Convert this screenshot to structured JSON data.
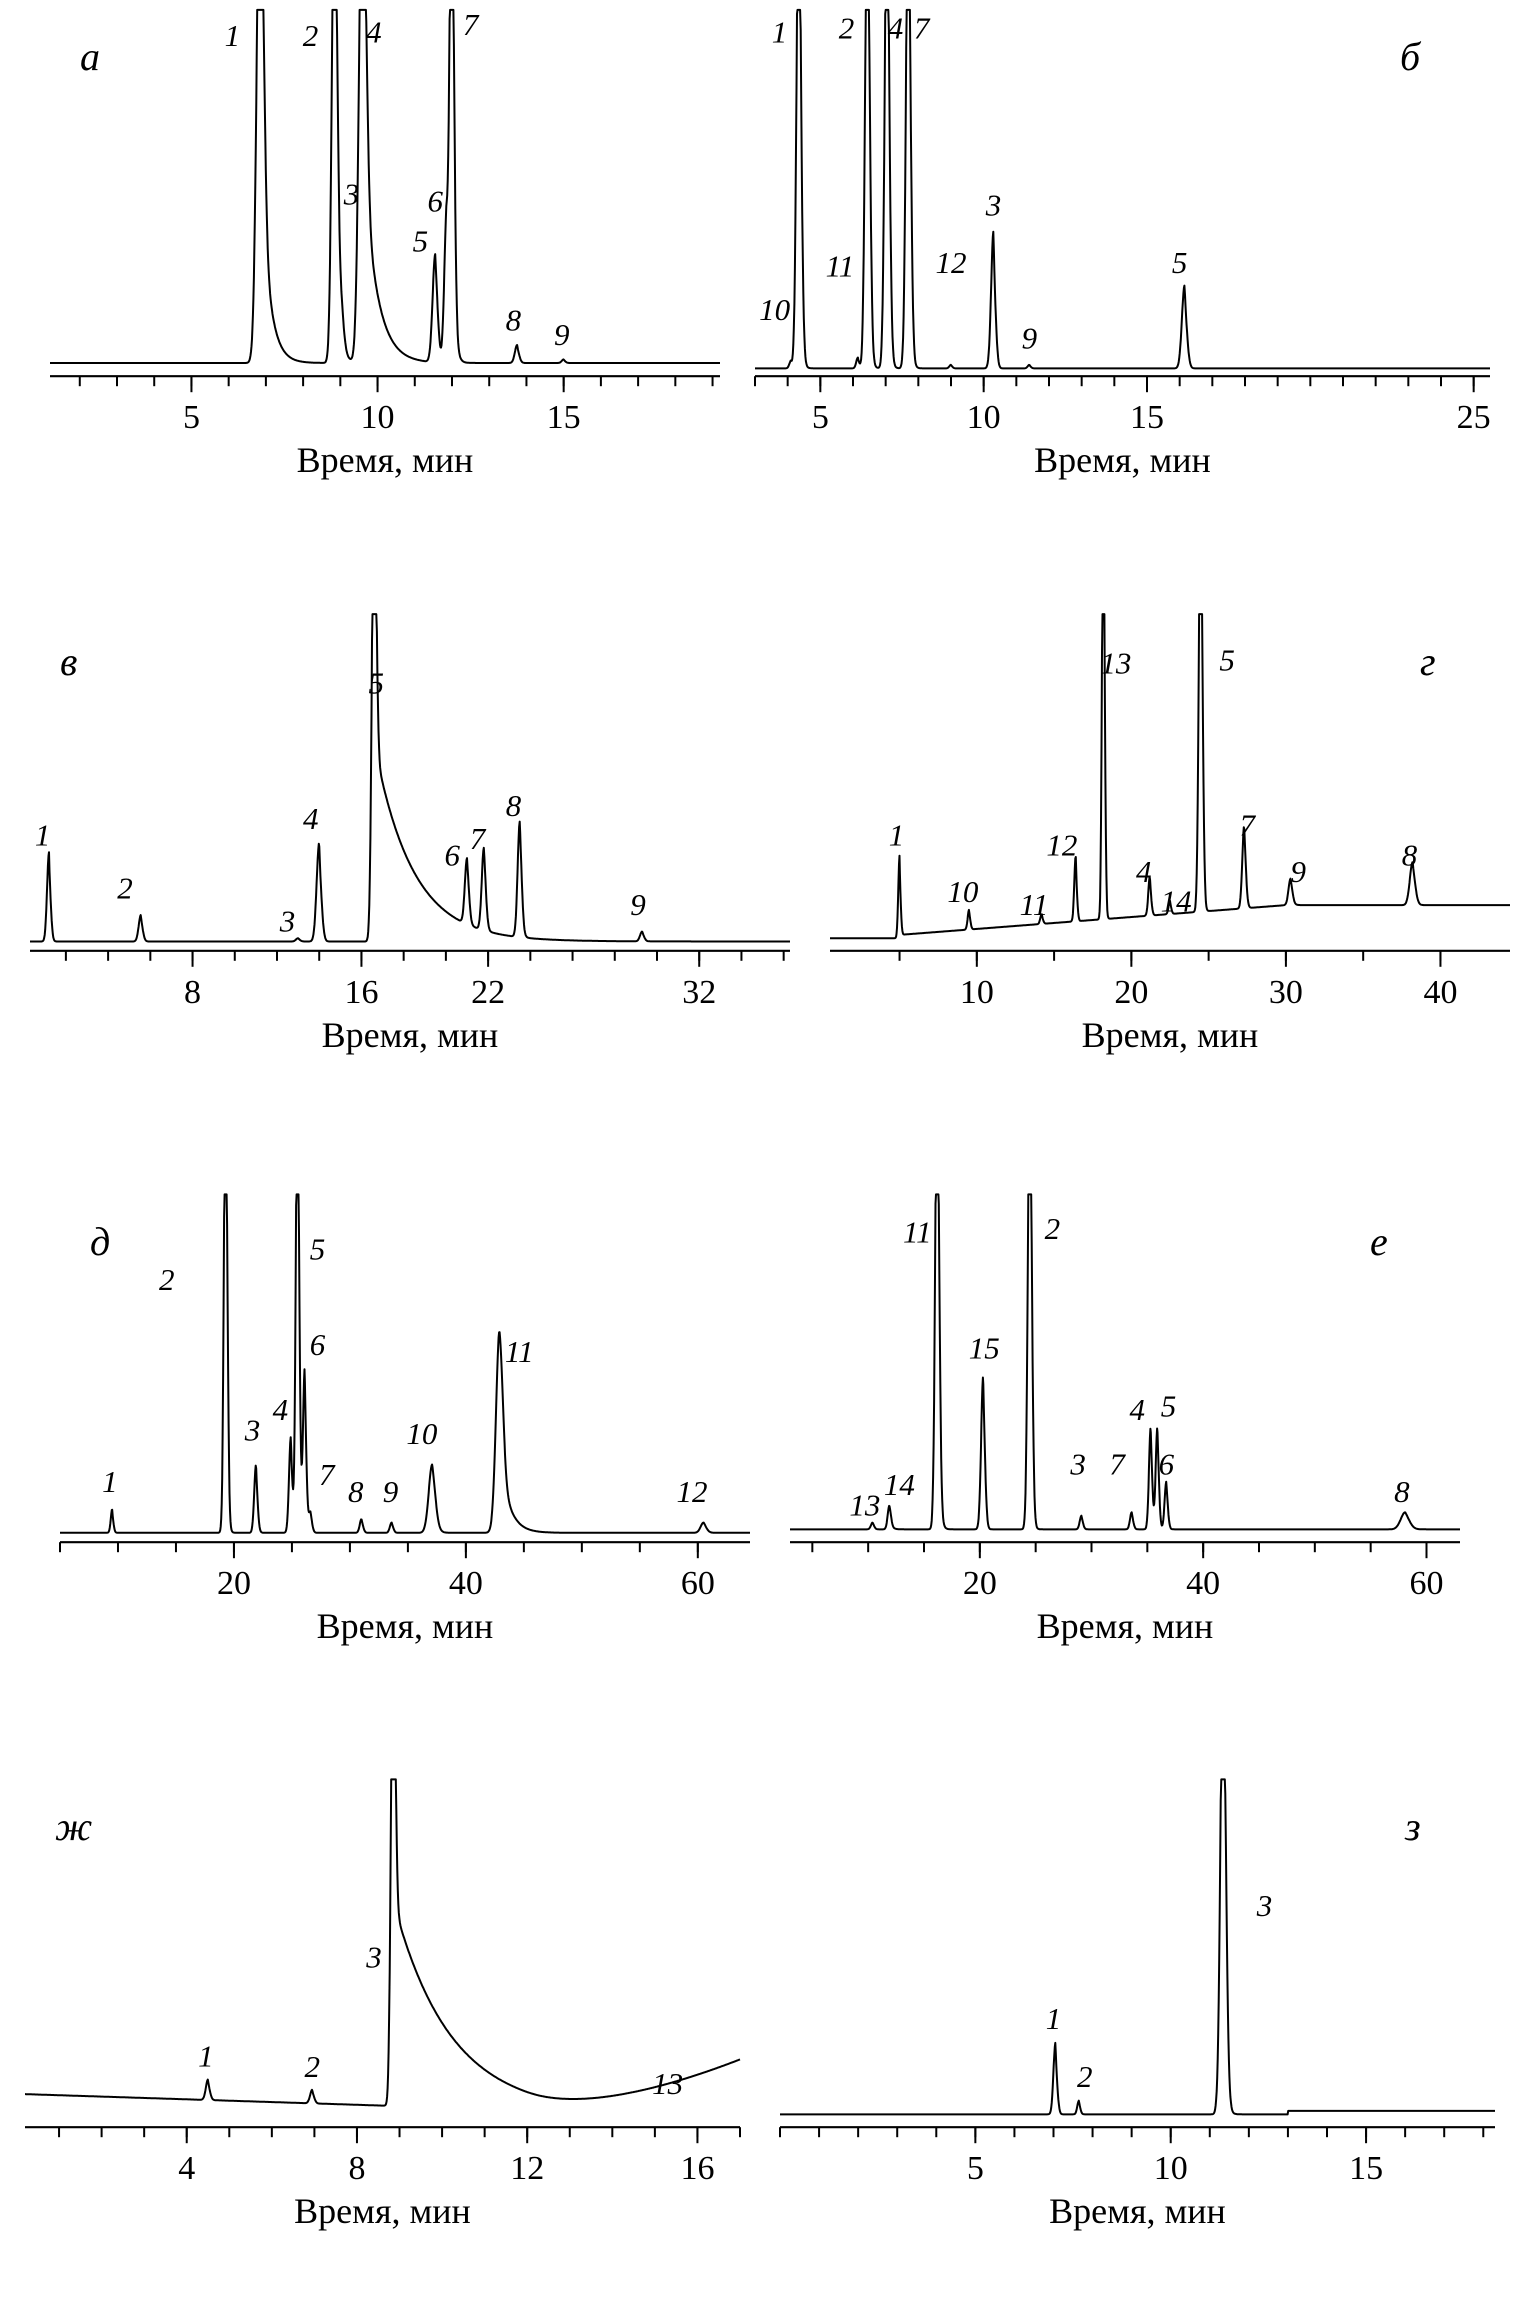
{
  "chart_data": [
    {
      "id": "a",
      "type": "line",
      "panel_label": "а",
      "xlabel": "Время, мин",
      "xticks": [
        5,
        10,
        15
      ],
      "xlim": [
        1.2,
        19.2
      ],
      "baseline": 0.02,
      "peaks": [
        {
          "label": "1",
          "x": 6.85,
          "height": 1.5,
          "width": 0.09,
          "tail": 0.22
        },
        {
          "label": "2",
          "x": 8.85,
          "height": 1.5,
          "width": 0.07,
          "tail": 0.1
        },
        {
          "label": "4",
          "x": 9.6,
          "height": 1.5,
          "width": 0.09,
          "tail": 0.35
        },
        {
          "label": "3",
          "x": 9.05,
          "height": 0.07,
          "width": 0.06,
          "tail": 0.05
        },
        {
          "label": "5",
          "x": 11.55,
          "height": 0.3,
          "width": 0.07,
          "tail": 0.05
        },
        {
          "label": "6",
          "x": 11.85,
          "height": 0.38,
          "width": 0.06,
          "tail": 0.05
        },
        {
          "label": "7",
          "x": 12.0,
          "height": 1.5,
          "width": 0.06,
          "tail": 0.06
        },
        {
          "label": "8",
          "x": 13.75,
          "height": 0.05,
          "width": 0.06,
          "tail": 0.03
        },
        {
          "label": "9",
          "x": 15.0,
          "height": 0.01,
          "width": 0.05,
          "tail": 0.02
        }
      ],
      "peak_labels": [
        {
          "text": "1",
          "x": 6.1,
          "y": 0.9
        },
        {
          "text": "2",
          "x": 8.2,
          "y": 0.9
        },
        {
          "text": "4",
          "x": 9.9,
          "y": 0.91
        },
        {
          "text": "7",
          "x": 12.5,
          "y": 0.93
        },
        {
          "text": "3",
          "x": 9.3,
          "y": 0.46
        },
        {
          "text": "6",
          "x": 11.55,
          "y": 0.44
        },
        {
          "text": "5",
          "x": 11.15,
          "y": 0.33
        },
        {
          "text": "8",
          "x": 13.65,
          "y": 0.11
        },
        {
          "text": "9",
          "x": 14.95,
          "y": 0.07
        }
      ]
    },
    {
      "id": "b",
      "type": "line",
      "panel_label": "б",
      "xlabel": "Время, мин",
      "xticks": [
        5,
        10,
        15,
        25
      ],
      "xlim": [
        3.0,
        25.5
      ],
      "baseline": 0.005,
      "peaks": [
        {
          "label": "1",
          "x": 4.35,
          "height": 1.5,
          "width": 0.07,
          "tail": 0.05
        },
        {
          "label": "10",
          "x": 4.1,
          "height": 0.02,
          "width": 0.05,
          "tail": 0.02
        },
        {
          "label": "11",
          "x": 6.15,
          "height": 0.03,
          "width": 0.05,
          "tail": 0.02
        },
        {
          "label": "2",
          "x": 6.45,
          "height": 1.5,
          "width": 0.07,
          "tail": 0.05
        },
        {
          "label": "4",
          "x": 7.05,
          "height": 1.5,
          "width": 0.07,
          "tail": 0.05
        },
        {
          "label": "7",
          "x": 7.7,
          "height": 1.5,
          "width": 0.07,
          "tail": 0.05
        },
        {
          "label": "12",
          "x": 9.0,
          "height": 0.01,
          "width": 0.05,
          "tail": 0.02
        },
        {
          "label": "3",
          "x": 10.3,
          "height": 0.38,
          "width": 0.07,
          "tail": 0.03
        },
        {
          "label": "9",
          "x": 11.4,
          "height": 0.01,
          "width": 0.05,
          "tail": 0.02
        },
        {
          "label": "5",
          "x": 16.15,
          "height": 0.23,
          "width": 0.08,
          "tail": 0.04
        }
      ],
      "peak_labels": [
        {
          "text": "1",
          "x": 3.75,
          "y": 0.91
        },
        {
          "text": "2",
          "x": 5.8,
          "y": 0.92
        },
        {
          "text": "4",
          "x": 7.3,
          "y": 0.92
        },
        {
          "text": "7",
          "x": 8.1,
          "y": 0.92
        },
        {
          "text": "б",
          "x": 23.0,
          "y": 0.87
        },
        {
          "text": "3",
          "x": 10.3,
          "y": 0.43
        },
        {
          "text": "5",
          "x": 16.0,
          "y": 0.27
        },
        {
          "text": "12",
          "x": 9.0,
          "y": 0.27
        },
        {
          "text": "11",
          "x": 5.6,
          "y": 0.26
        },
        {
          "text": "10",
          "x": 3.6,
          "y": 0.14
        },
        {
          "text": "9",
          "x": 11.4,
          "y": 0.06
        }
      ]
    },
    {
      "id": "c",
      "type": "line",
      "panel_label": "в",
      "xlabel": "Время, мин",
      "xticks": [
        8,
        16,
        22,
        32
      ],
      "xlim": [
        0.3,
        36.3
      ],
      "baseline": 0.01,
      "peaks": [
        {
          "label": "1",
          "x": 1.2,
          "height": 0.27,
          "width": 0.09,
          "tail": 0.04
        },
        {
          "label": "2",
          "x": 5.55,
          "height": 0.08,
          "width": 0.1,
          "tail": 0.05
        },
        {
          "label": "3",
          "x": 13.0,
          "height": 0.01,
          "width": 0.1,
          "tail": 0.05
        },
        {
          "label": "4",
          "x": 14.0,
          "height": 0.3,
          "width": 0.12,
          "tail": 0.05
        },
        {
          "label": "5",
          "x": 16.6,
          "height": 1.5,
          "width": 0.1,
          "tail": 1.8
        },
        {
          "label": "6",
          "x": 21.0,
          "height": 0.2,
          "width": 0.1,
          "tail": 0.08
        },
        {
          "label": "7",
          "x": 21.8,
          "height": 0.25,
          "width": 0.1,
          "tail": 0.08
        },
        {
          "label": "8",
          "x": 23.5,
          "height": 0.35,
          "width": 0.1,
          "tail": 0.08
        },
        {
          "label": "9",
          "x": 29.3,
          "height": 0.03,
          "width": 0.1,
          "tail": 0.05
        }
      ],
      "peak_labels": [
        {
          "text": "1",
          "x": 0.9,
          "y": 0.3
        },
        {
          "text": "2",
          "x": 4.8,
          "y": 0.14
        },
        {
          "text": "3",
          "x": 12.5,
          "y": 0.04
        },
        {
          "text": "4",
          "x": 13.6,
          "y": 0.35
        },
        {
          "text": "5",
          "x": 16.7,
          "y": 0.76
        },
        {
          "text": "6",
          "x": 20.3,
          "y": 0.24
        },
        {
          "text": "7",
          "x": 21.5,
          "y": 0.29
        },
        {
          "text": "8",
          "x": 23.2,
          "y": 0.39
        },
        {
          "text": "9",
          "x": 29.1,
          "y": 0.09
        }
      ]
    },
    {
      "id": "d",
      "type": "line",
      "panel_label": "г",
      "xlabel": "Время, мин",
      "xticks": [
        10,
        20,
        30,
        40
      ],
      "xlim": [
        0.5,
        44.5
      ],
      "baseline": 0.02,
      "peaks": [
        {
          "label": "1",
          "x": 5.0,
          "height": 0.25,
          "width": 0.08,
          "tail": 0.03
        },
        {
          "label": "10",
          "x": 9.5,
          "height": 0.06,
          "width": 0.09,
          "tail": 0.04
        },
        {
          "label": "11",
          "x": 14.2,
          "height": 0.03,
          "width": 0.09,
          "tail": 0.04
        },
        {
          "label": "12",
          "x": 16.4,
          "height": 0.2,
          "width": 0.09,
          "tail": 0.04
        },
        {
          "label": "13",
          "x": 18.2,
          "height": 1.5,
          "width": 0.09,
          "tail": 0.05
        },
        {
          "label": "4",
          "x": 21.2,
          "height": 0.12,
          "width": 0.1,
          "tail": 0.04
        },
        {
          "label": "14",
          "x": 22.5,
          "height": 0.04,
          "width": 0.09,
          "tail": 0.04
        },
        {
          "label": "5",
          "x": 24.5,
          "height": 1.5,
          "width": 0.12,
          "tail": 0.07
        },
        {
          "label": "7",
          "x": 27.3,
          "height": 0.25,
          "width": 0.12,
          "tail": 0.08
        },
        {
          "label": "9",
          "x": 30.3,
          "height": 0.08,
          "width": 0.13,
          "tail": 0.12
        },
        {
          "label": "8",
          "x": 38.2,
          "height": 0.13,
          "width": 0.18,
          "tail": 0.12
        }
      ],
      "peak_labels": [
        {
          "text": "1",
          "x": 4.8,
          "y": 0.3
        },
        {
          "text": "10",
          "x": 9.1,
          "y": 0.13
        },
        {
          "text": "11",
          "x": 13.7,
          "y": 0.09
        },
        {
          "text": "12",
          "x": 15.5,
          "y": 0.27
        },
        {
          "text": "13",
          "x": 19.0,
          "y": 0.82
        },
        {
          "text": "4",
          "x": 20.8,
          "y": 0.19
        },
        {
          "text": "14",
          "x": 22.9,
          "y": 0.1
        },
        {
          "text": "5",
          "x": 26.2,
          "y": 0.83
        },
        {
          "text": "7",
          "x": 27.5,
          "y": 0.33
        },
        {
          "text": "9",
          "x": 30.8,
          "y": 0.19
        },
        {
          "text": "8",
          "x": 38.0,
          "y": 0.24
        }
      ]
    },
    {
      "id": "e",
      "type": "line",
      "panel_label": "д",
      "xlabel": "Время, мин",
      "xticks": [
        20,
        40,
        60
      ],
      "xlim": [
        5.0,
        64.5
      ],
      "baseline": 0.01,
      "peaks": [
        {
          "label": "1",
          "x": 9.5,
          "height": 0.07,
          "width": 0.12,
          "tail": 0.05
        },
        {
          "label": "2",
          "x": 19.3,
          "height": 1.5,
          "width": 0.15,
          "tail": 0.1
        },
        {
          "label": "3",
          "x": 21.9,
          "height": 0.2,
          "width": 0.15,
          "tail": 0.1
        },
        {
          "label": "4",
          "x": 24.9,
          "height": 0.28,
          "width": 0.15,
          "tail": 0.1
        },
        {
          "label": "5",
          "x": 25.5,
          "height": 1.5,
          "width": 0.15,
          "tail": 0.1
        },
        {
          "label": "6",
          "x": 26.1,
          "height": 0.48,
          "width": 0.15,
          "tail": 0.1
        },
        {
          "label": "7",
          "x": 26.6,
          "height": 0.06,
          "width": 0.15,
          "tail": 0.1
        },
        {
          "label": "8",
          "x": 31.0,
          "height": 0.04,
          "width": 0.15,
          "tail": 0.1
        },
        {
          "label": "9",
          "x": 33.6,
          "height": 0.03,
          "width": 0.15,
          "tail": 0.1
        },
        {
          "label": "10",
          "x": 37.1,
          "height": 0.2,
          "width": 0.3,
          "tail": 0.25
        },
        {
          "label": "11",
          "x": 42.9,
          "height": 0.59,
          "width": 0.3,
          "tail": 0.8
        },
        {
          "label": "12",
          "x": 60.5,
          "height": 0.03,
          "width": 0.25,
          "tail": 0.2
        }
      ],
      "peak_labels": [
        {
          "text": "1",
          "x": 9.3,
          "y": 0.13
        },
        {
          "text": "2",
          "x": 14.2,
          "y": 0.72
        },
        {
          "text": "3",
          "x": 21.6,
          "y": 0.28
        },
        {
          "text": "4",
          "x": 24.0,
          "y": 0.34
        },
        {
          "text": "5",
          "x": 27.2,
          "y": 0.81
        },
        {
          "text": "6",
          "x": 27.2,
          "y": 0.53
        },
        {
          "text": "7",
          "x": 28.0,
          "y": 0.15
        },
        {
          "text": "8",
          "x": 30.5,
          "y": 0.1
        },
        {
          "text": "9",
          "x": 33.5,
          "y": 0.1
        },
        {
          "text": "10",
          "x": 36.2,
          "y": 0.27
        },
        {
          "text": "11",
          "x": 44.6,
          "y": 0.51
        },
        {
          "text": "12",
          "x": 59.5,
          "y": 0.1
        }
      ]
    },
    {
      "id": "f",
      "type": "line",
      "panel_label": "е",
      "xlabel": "Время, мин",
      "xticks": [
        20,
        40,
        60
      ],
      "xlim": [
        3.0,
        63.0
      ],
      "baseline": 0.02,
      "peaks": [
        {
          "label": "13",
          "x": 10.4,
          "height": 0.02,
          "width": 0.15,
          "tail": 0.1
        },
        {
          "label": "14",
          "x": 11.9,
          "height": 0.07,
          "width": 0.15,
          "tail": 0.2
        },
        {
          "label": "11",
          "x": 16.2,
          "height": 1.5,
          "width": 0.18,
          "tail": 0.15
        },
        {
          "label": "15",
          "x": 20.3,
          "height": 0.45,
          "width": 0.18,
          "tail": 0.1
        },
        {
          "label": "2",
          "x": 24.5,
          "height": 1.5,
          "width": 0.18,
          "tail": 0.12
        },
        {
          "label": "3",
          "x": 29.1,
          "height": 0.04,
          "width": 0.15,
          "tail": 0.1
        },
        {
          "label": "7",
          "x": 33.6,
          "height": 0.05,
          "width": 0.15,
          "tail": 0.1
        },
        {
          "label": "4",
          "x": 35.3,
          "height": 0.3,
          "width": 0.15,
          "tail": 0.1
        },
        {
          "label": "5",
          "x": 35.9,
          "height": 0.3,
          "width": 0.15,
          "tail": 0.1
        },
        {
          "label": "6",
          "x": 36.7,
          "height": 0.14,
          "width": 0.15,
          "tail": 0.1
        },
        {
          "label": "8",
          "x": 58.1,
          "height": 0.05,
          "width": 0.4,
          "tail": 0.3
        }
      ],
      "peak_labels": [
        {
          "text": "13",
          "x": 9.7,
          "y": 0.06
        },
        {
          "text": "14",
          "x": 12.8,
          "y": 0.12
        },
        {
          "text": "11",
          "x": 14.4,
          "y": 0.86
        },
        {
          "text": "15",
          "x": 20.4,
          "y": 0.52
        },
        {
          "text": "2",
          "x": 26.5,
          "y": 0.87
        },
        {
          "text": "3",
          "x": 28.8,
          "y": 0.18
        },
        {
          "text": "7",
          "x": 32.3,
          "y": 0.18
        },
        {
          "text": "4",
          "x": 34.1,
          "y": 0.34
        },
        {
          "text": "5",
          "x": 36.9,
          "y": 0.35
        },
        {
          "text": "6",
          "x": 36.7,
          "y": 0.18
        },
        {
          "text": "8",
          "x": 57.8,
          "y": 0.1
        }
      ]
    },
    {
      "id": "g",
      "type": "line",
      "panel_label": "ж",
      "xlabel": "Время, мин",
      "xticks": [
        4,
        8,
        12,
        16
      ],
      "xlim": [
        0.2,
        17.0
      ],
      "baseline": 0.08,
      "peaks": [
        {
          "label": "1",
          "x": 4.5,
          "height": 0.06,
          "width": 0.05,
          "tail": 0.02
        },
        {
          "label": "2",
          "x": 6.95,
          "height": 0.04,
          "width": 0.05,
          "tail": 0.02
        },
        {
          "label": "3",
          "x": 8.85,
          "height": 1.5,
          "width": 0.05,
          "tail": 1.3
        }
      ],
      "peak_labels": [
        {
          "text": "1",
          "x": 4.45,
          "y": 0.16
        },
        {
          "text": "2",
          "x": 6.95,
          "y": 0.13
        },
        {
          "text": "3",
          "x": 8.4,
          "y": 0.45
        },
        {
          "text": "13",
          "x": 15.3,
          "y": 0.08
        }
      ]
    },
    {
      "id": "h",
      "type": "line",
      "panel_label": "з",
      "xlabel": "Время, мин",
      "xticks": [
        5,
        10,
        15
      ],
      "xlim": [
        0.0,
        18.3
      ],
      "baseline": 0.02,
      "peaks": [
        {
          "label": "1",
          "x": 7.05,
          "height": 0.21,
          "width": 0.05,
          "tail": 0.02
        },
        {
          "label": "2",
          "x": 7.65,
          "height": 0.04,
          "width": 0.04,
          "tail": 0.02
        },
        {
          "label": "3",
          "x": 11.35,
          "height": 1.5,
          "width": 0.07,
          "tail": 0.05
        }
      ],
      "peak_labels": [
        {
          "text": "1",
          "x": 7.0,
          "y": 0.27
        },
        {
          "text": "2",
          "x": 7.8,
          "y": 0.1
        },
        {
          "text": "3",
          "x": 12.4,
          "y": 0.6
        }
      ]
    }
  ]
}
